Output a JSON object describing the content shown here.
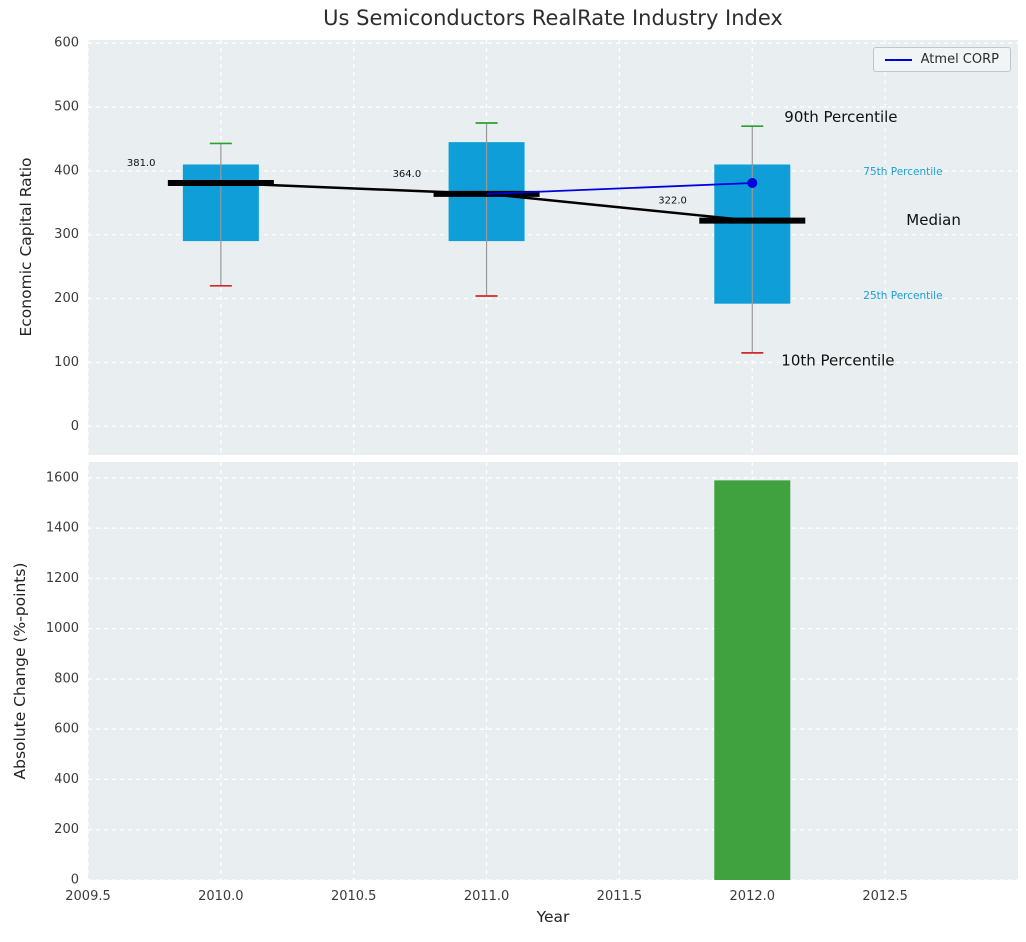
{
  "figure": {
    "title": "Us Semiconductors RealRate Industry Index",
    "style": {
      "plot_bg": "#e9eef0",
      "grid_color": "#ffffff",
      "tick_color": "#3b3b3b"
    }
  },
  "legend": {
    "label": "Atmel CORP",
    "line_color": "#0000dd"
  },
  "chart_data": [
    {
      "type": "boxplot",
      "title": "Us Semiconductors RealRate Industry Index",
      "ylabel": "Economic Capital Ratio",
      "xlim": [
        2009.5,
        2013.0
      ],
      "ylim": [
        -45,
        605
      ],
      "yticks": [
        0,
        100,
        200,
        300,
        400,
        500,
        600
      ],
      "grid": true,
      "box_color": "#0f9ed8",
      "whisker_color": "#999999",
      "cap_top_color": "#2ca02c",
      "cap_bottom_color": "#d62728",
      "median_color": "#000000",
      "boxes": [
        {
          "x": 2010,
          "median": 381.0,
          "q1": 290,
          "q3": 410,
          "lo": 220,
          "hi": 443,
          "label": "381.0"
        },
        {
          "x": 2011,
          "median": 364.0,
          "q1": 290,
          "q3": 445,
          "lo": 204,
          "hi": 475,
          "label": "364.0"
        },
        {
          "x": 2012,
          "median": 322.0,
          "q1": 192,
          "q3": 410,
          "lo": 115,
          "hi": 470,
          "label": "322.0"
        }
      ],
      "median_series": {
        "x": [
          2010,
          2011,
          2012
        ],
        "y": [
          381,
          364,
          322
        ]
      },
      "company_series": {
        "name": "Atmel CORP",
        "x": [
          2011,
          2012
        ],
        "y": [
          364,
          381
        ],
        "color": "#0000dd"
      },
      "annotations": [
        {
          "text": "90th Percentile",
          "y": 484,
          "color": "#111111",
          "size": 15
        },
        {
          "text": "75th Percentile",
          "y": 398,
          "color": "#1b9fd2",
          "size": 10.5
        },
        {
          "text": "Median",
          "y": 322,
          "color": "#111111",
          "size": 15
        },
        {
          "text": "25th Percentile",
          "y": 204,
          "color": "#1b9fd2",
          "size": 10.5
        },
        {
          "text": "10th Percentile",
          "y": 102,
          "color": "#111111",
          "size": 15
        }
      ]
    },
    {
      "type": "bar",
      "ylabel": "Absolute Change (%-points)",
      "xlabel": "Year",
      "xlim": [
        2009.5,
        2013.0
      ],
      "ylim": [
        0,
        1663
      ],
      "yticks": [
        0,
        200,
        400,
        600,
        800,
        1000,
        1200,
        1400,
        1600
      ],
      "xticks": [
        2009.5,
        2010.0,
        2010.5,
        2011.0,
        2011.5,
        2012.0,
        2012.5
      ],
      "xtick_labels": [
        "2009.5",
        "2010.0",
        "2010.5",
        "2011.0",
        "2011.5",
        "2012.0",
        "2012.5"
      ],
      "grid": true,
      "bar_color": "#3fa23f",
      "bars": [
        {
          "x": 2012,
          "value": 1590
        }
      ]
    }
  ]
}
